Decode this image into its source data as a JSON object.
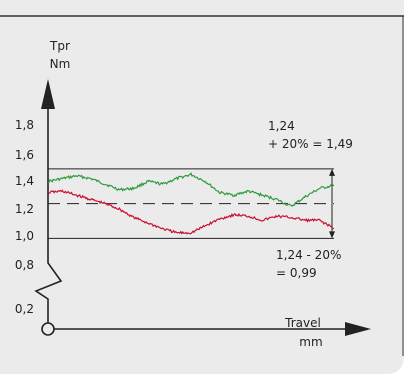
{
  "colors": {
    "panel": "#ebebeb",
    "frame": "#333333",
    "axis": "#222222",
    "upper_series": "#2e9b3c",
    "lower_series": "#c8102e"
  },
  "chart_data": {
    "type": "line",
    "y_axis": {
      "label_line1": "Tpr",
      "label_line2": "Nm",
      "ticks": [
        "1,8",
        "1,6",
        "1,4",
        "1,2",
        "1,0",
        "0,8",
        "0,2"
      ],
      "tick_values": [
        1.8,
        1.6,
        1.4,
        1.2,
        1.0,
        0.8,
        0.2
      ],
      "axis_break": "between 0,8 and 0,2"
    },
    "x_axis": {
      "label_line1": "Travel",
      "label_line2": "mm",
      "ticks": []
    },
    "reference_lines": {
      "nominal": 1.24,
      "upper": 1.49,
      "lower": 0.99,
      "nominal_style": "dashed"
    },
    "annotations": {
      "upper_line1": "1,24",
      "upper_line2": "+ 20% = 1,49",
      "lower_line1": "1,24 - 20%",
      "lower_line2": "= 0,99"
    },
    "x_range": [
      0,
      1
    ],
    "series": [
      {
        "color_key": "upper_series",
        "x": [
          0.0,
          0.05,
          0.1,
          0.15,
          0.2,
          0.25,
          0.3,
          0.35,
          0.4,
          0.45,
          0.5,
          0.55,
          0.6,
          0.65,
          0.7,
          0.75,
          0.8,
          0.85,
          0.9,
          0.95,
          1.0
        ],
        "y": [
          1.4,
          1.42,
          1.44,
          1.42,
          1.38,
          1.34,
          1.35,
          1.4,
          1.38,
          1.42,
          1.45,
          1.4,
          1.32,
          1.3,
          1.33,
          1.3,
          1.27,
          1.22,
          1.29,
          1.35,
          1.37
        ]
      },
      {
        "color_key": "lower_series",
        "x": [
          0.0,
          0.05,
          0.1,
          0.15,
          0.2,
          0.25,
          0.3,
          0.35,
          0.4,
          0.45,
          0.5,
          0.55,
          0.6,
          0.65,
          0.7,
          0.75,
          0.8,
          0.85,
          0.9,
          0.95,
          1.0
        ],
        "y": [
          1.32,
          1.33,
          1.3,
          1.27,
          1.24,
          1.2,
          1.14,
          1.1,
          1.06,
          1.03,
          1.03,
          1.08,
          1.13,
          1.16,
          1.15,
          1.12,
          1.15,
          1.14,
          1.12,
          1.12,
          1.06
        ]
      }
    ]
  }
}
